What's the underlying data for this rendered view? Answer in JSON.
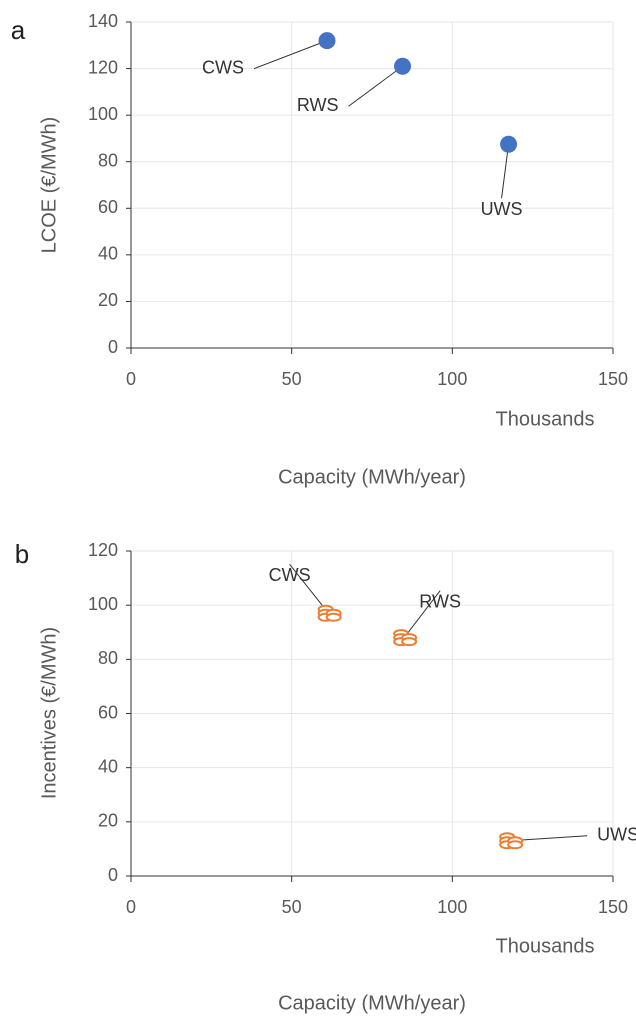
{
  "chart_data": [
    {
      "type": "scatter",
      "panel_label": "a",
      "ylabel": "LCOE (€/MWh)",
      "xlabel": "Capacity (MWh/year)",
      "x_display_unit": "Thousands",
      "x": [
        61,
        84.5,
        117.5
      ],
      "values": [
        132,
        121,
        87.5
      ],
      "point_labels": [
        "CWS",
        "RWS",
        "UWS"
      ],
      "color": "#4472c4",
      "marker": "circle",
      "xlim": [
        0,
        150
      ],
      "xticks": [
        0,
        50,
        100,
        150
      ],
      "ylim": [
        0,
        140
      ],
      "yticks": [
        0,
        20,
        40,
        60,
        80,
        100,
        120,
        140
      ],
      "grid": true
    },
    {
      "type": "scatter",
      "panel_label": "b",
      "ylabel": "Incentives (€/MWh)",
      "xlabel": "Capacity (MWh/year)",
      "x_display_unit": "Thousands",
      "x": [
        61.5,
        85,
        118
      ],
      "values": [
        97,
        88,
        13
      ],
      "point_labels": [
        "CWS",
        "RWS",
        "UWS"
      ],
      "color": "#ed7d31",
      "marker": "coins",
      "xlim": [
        0,
        150
      ],
      "xticks": [
        0,
        50,
        100,
        150
      ],
      "ylim": [
        0,
        120
      ],
      "yticks": [
        0,
        20,
        40,
        60,
        80,
        100,
        120
      ],
      "grid": true
    }
  ]
}
